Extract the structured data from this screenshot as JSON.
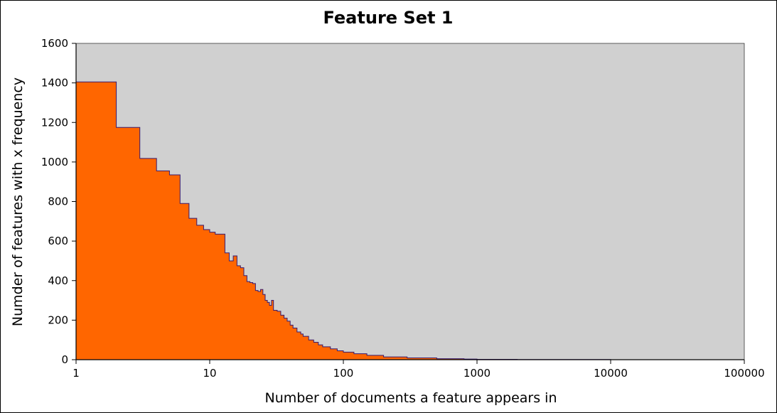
{
  "chart_data": {
    "type": "area",
    "title": "Feature Set 1",
    "xlabel": "Number of documents a feature appears in",
    "ylabel": "Numder of features with x frequency",
    "x_scale": "log",
    "xlim": [
      1,
      100000
    ],
    "ylim": [
      0,
      1600
    ],
    "x_ticks": [
      "1",
      "10",
      "100",
      "1000",
      "10000",
      "100000"
    ],
    "x_tick_values": [
      1,
      10,
      100,
      1000,
      10000,
      100000
    ],
    "y_ticks": [
      "0",
      "200",
      "400",
      "600",
      "800",
      "1000",
      "1200",
      "1400",
      "1600"
    ],
    "y_tick_values": [
      0,
      200,
      400,
      600,
      800,
      1000,
      1200,
      1400,
      1600
    ],
    "grid": false,
    "legend": "none",
    "colors": {
      "fill": "#ff6600",
      "stroke": "#3a1a6e",
      "plot_background": "#d0d0d0",
      "axis": "#000000"
    },
    "series": [
      {
        "x": [
          1,
          2,
          3,
          4,
          5,
          6,
          7,
          8,
          9,
          10,
          11,
          12,
          13,
          14,
          15,
          16,
          17,
          18,
          19,
          20,
          21,
          22,
          23,
          24,
          25,
          26,
          27,
          28,
          29,
          30,
          32,
          34,
          36,
          38,
          40,
          42,
          45,
          48,
          50,
          55,
          60,
          65,
          70,
          80,
          90,
          100,
          120,
          150,
          200,
          300,
          500,
          800,
          1000,
          2000,
          5000,
          10000,
          20000,
          50000
        ],
        "y": [
          1405,
          1175,
          1018,
          955,
          935,
          790,
          715,
          680,
          658,
          645,
          635,
          635,
          540,
          500,
          525,
          475,
          465,
          425,
          395,
          390,
          385,
          350,
          345,
          355,
          330,
          300,
          290,
          275,
          300,
          250,
          245,
          225,
          210,
          195,
          175,
          160,
          140,
          130,
          118,
          100,
          88,
          75,
          65,
          55,
          45,
          38,
          30,
          22,
          14,
          9,
          5,
          3,
          2,
          1,
          1,
          0,
          0,
          0
        ]
      }
    ]
  }
}
